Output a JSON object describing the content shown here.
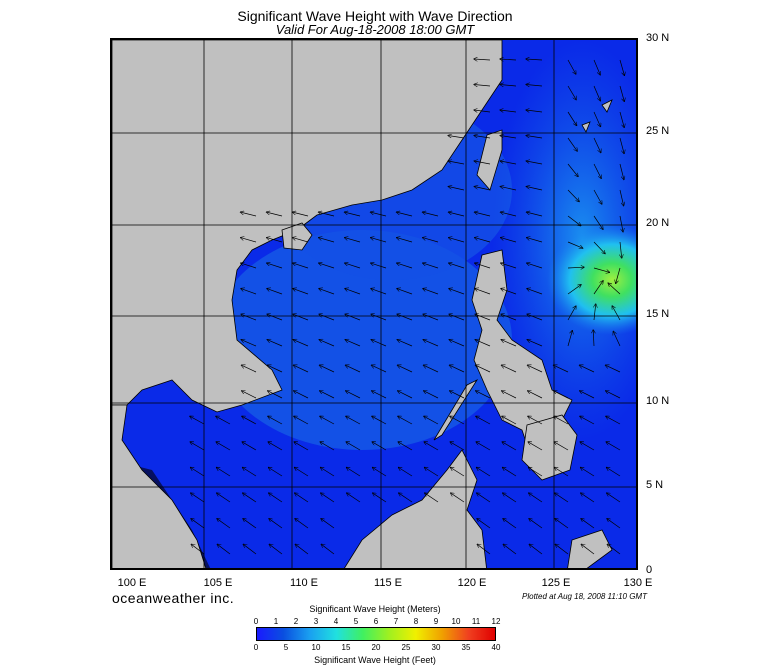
{
  "title": "Significant Wave Height with Wave Direction",
  "subtitle": "Valid For Aug-18-2008 18:00 GMT",
  "latitude_labels": [
    "30 N",
    "25 N",
    "20 N",
    "15 N",
    "10 N",
    "5 N",
    "0"
  ],
  "longitude_labels": [
    "100 E",
    "105 E",
    "110 E",
    "115 E",
    "120 E",
    "125 E",
    "130 E"
  ],
  "brand": "oceanweather inc.",
  "plotted_at": "Plotted at Aug 18, 2008 11:10 GMT",
  "scale": {
    "meters_title": "Significant Wave Height (Meters)",
    "feet_title": "Significant Wave Height (Feet)",
    "meters_ticks": [
      "0",
      "1",
      "2",
      "3",
      "4",
      "5",
      "6",
      "7",
      "8",
      "9",
      "10",
      "11",
      "12"
    ],
    "feet_ticks": [
      "0",
      "5",
      "10",
      "15",
      "20",
      "25",
      "30",
      "35",
      "40"
    ],
    "colors": [
      "#1a1aff",
      "#0a4fe0",
      "#1aa0f0",
      "#20e0e0",
      "#40f060",
      "#a0f020",
      "#f0f000",
      "#f0a000",
      "#f04020",
      "#e00000"
    ]
  },
  "colors": {
    "land": "#c0c0c0",
    "sea_low": "#0a2ae8",
    "sea_mid": "#1460e6",
    "sea_high": "#1aa8f0",
    "peak": "#40e040",
    "deep_shelf": "#061060"
  }
}
